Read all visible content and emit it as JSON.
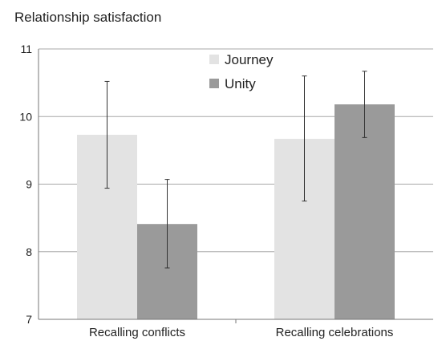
{
  "chart_data": {
    "type": "bar",
    "title": "",
    "xlabel": "",
    "ylabel": "Relationship satisfaction",
    "ylim": [
      7,
      11
    ],
    "yticks": [
      7,
      8,
      9,
      10,
      11
    ],
    "grid": true,
    "legend_position": "top-center",
    "categories": [
      "Recalling conflicts",
      "Recalling celebrations"
    ],
    "series": [
      {
        "name": "Journey",
        "color": "#e3e3e3",
        "values": [
          9.73,
          9.67
        ],
        "error_low": [
          8.94,
          8.75
        ],
        "error_high": [
          10.52,
          10.6
        ]
      },
      {
        "name": "Unity",
        "color": "#9a9a9a",
        "values": [
          8.41,
          10.18
        ],
        "error_low": [
          7.76,
          9.69
        ],
        "error_high": [
          9.07,
          10.67
        ]
      }
    ]
  }
}
